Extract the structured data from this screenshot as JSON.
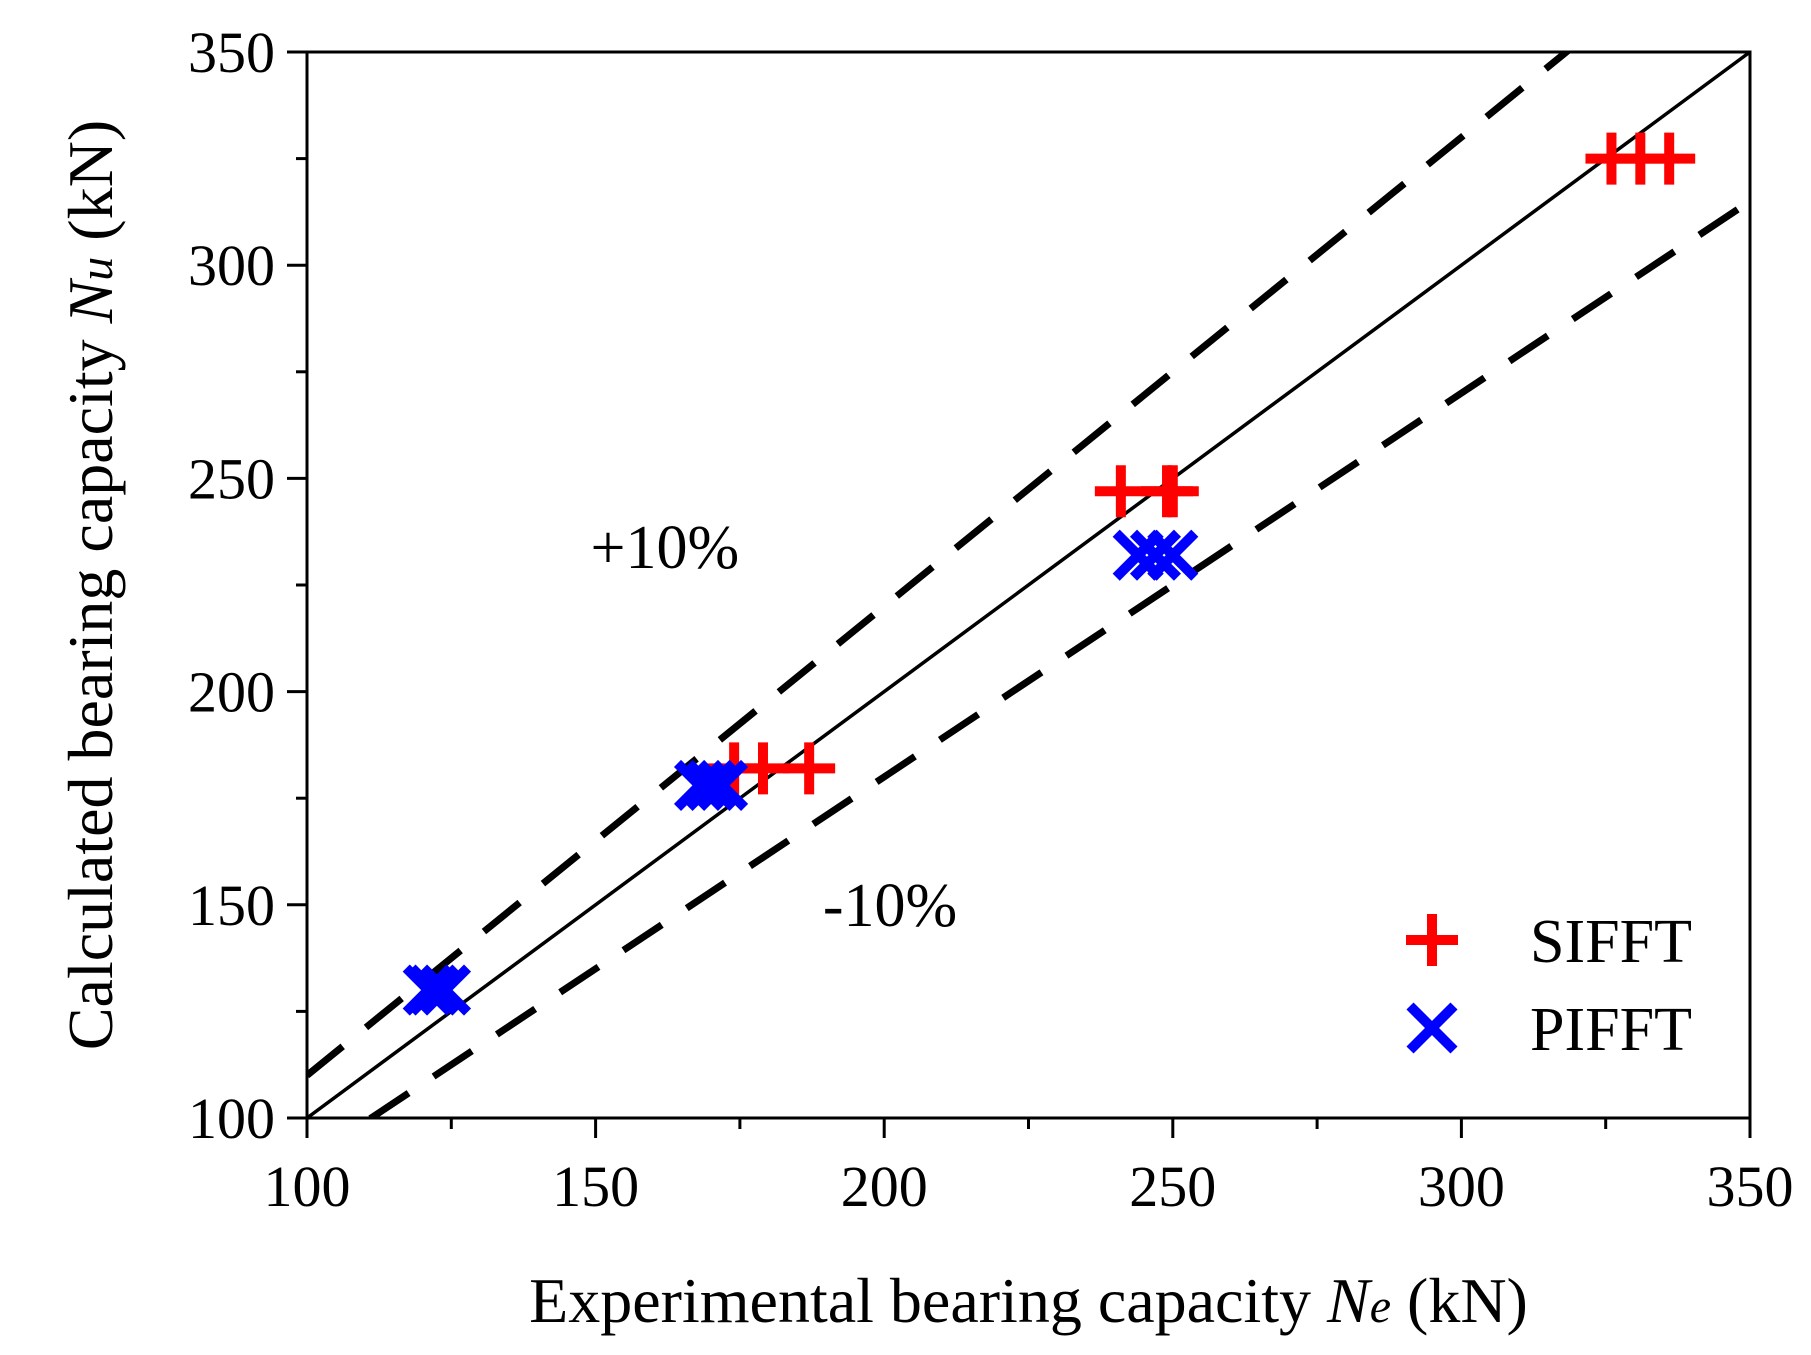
{
  "chart_data": {
    "type": "scatter",
    "xlabel": {
      "text": "Experimental bearing capacity ",
      "symbol": "N",
      "subscript": "e",
      "unit": " (kN)"
    },
    "ylabel": {
      "text": "Calculated bearing capacity ",
      "symbol": "N",
      "subscript": "u",
      "unit": " (kN)"
    },
    "xlim": [
      100,
      350
    ],
    "ylim": [
      100,
      350
    ],
    "x_ticks": [
      "100",
      "150",
      "200",
      "250",
      "300",
      "350"
    ],
    "y_ticks": [
      "100",
      "150",
      "200",
      "250",
      "300",
      "350"
    ],
    "grid": false,
    "legend_position": "bottom-right",
    "reference_lines": [
      {
        "label": "",
        "style": "solid",
        "slope": 1.0
      },
      {
        "label": "+10%",
        "style": "dashed",
        "slope": 1.1
      },
      {
        "label": "-10%",
        "style": "dashed",
        "slope": 0.9
      }
    ],
    "series": [
      {
        "name": "SIFFT",
        "marker": "plus",
        "color": "#ff0000",
        "points": [
          {
            "x": 174,
            "y": 182
          },
          {
            "x": 179,
            "y": 182
          },
          {
            "x": 187,
            "y": 182
          },
          {
            "x": 241,
            "y": 247
          },
          {
            "x": 249,
            "y": 247
          },
          {
            "x": 250,
            "y": 247
          },
          {
            "x": 326,
            "y": 325
          },
          {
            "x": 331,
            "y": 325
          },
          {
            "x": 336,
            "y": 325
          }
        ]
      },
      {
        "name": "PIFFT",
        "marker": "cross",
        "color": "#0000ff",
        "points": [
          {
            "x": 121,
            "y": 130
          },
          {
            "x": 122,
            "y": 130
          },
          {
            "x": 124,
            "y": 130
          },
          {
            "x": 168,
            "y": 178
          },
          {
            "x": 170,
            "y": 178
          },
          {
            "x": 172,
            "y": 178
          },
          {
            "x": 244,
            "y": 232
          },
          {
            "x": 247,
            "y": 232
          },
          {
            "x": 250,
            "y": 232
          }
        ]
      }
    ]
  }
}
